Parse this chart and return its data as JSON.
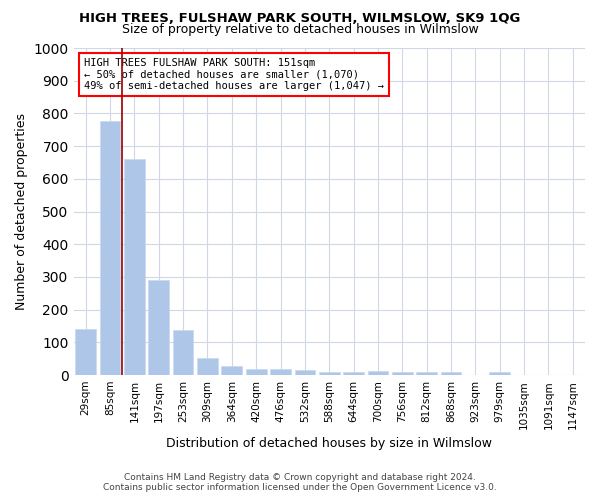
{
  "title": "HIGH TREES, FULSHAW PARK SOUTH, WILMSLOW, SK9 1QG",
  "subtitle": "Size of property relative to detached houses in Wilmslow",
  "xlabel": "Distribution of detached houses by size in Wilmslow",
  "ylabel": "Number of detached properties",
  "footer_line1": "Contains HM Land Registry data © Crown copyright and database right 2024.",
  "footer_line2": "Contains public sector information licensed under the Open Government Licence v3.0.",
  "annotation_line1": "HIGH TREES FULSHAW PARK SOUTH: 151sqm",
  "annotation_line2": "← 50% of detached houses are smaller (1,070)",
  "annotation_line3": "49% of semi-detached houses are larger (1,047) →",
  "bar_color": "#aec6e8",
  "bar_edge_color": "#c8d8ee",
  "grid_color": "#d0d8e8",
  "redline_x": 1.5,
  "categories": [
    "29sqm",
    "85sqm",
    "141sqm",
    "197sqm",
    "253sqm",
    "309sqm",
    "364sqm",
    "420sqm",
    "476sqm",
    "532sqm",
    "588sqm",
    "644sqm",
    "700sqm",
    "756sqm",
    "812sqm",
    "868sqm",
    "923sqm",
    "979sqm",
    "1035sqm",
    "1091sqm",
    "1147sqm"
  ],
  "values": [
    140,
    778,
    660,
    290,
    138,
    52,
    28,
    20,
    20,
    14,
    10,
    10,
    12,
    10,
    10,
    8,
    0,
    10,
    0,
    0,
    0
  ],
  "ylim": [
    0,
    1000
  ],
  "yticks": [
    0,
    100,
    200,
    300,
    400,
    500,
    600,
    700,
    800,
    900,
    1000
  ]
}
